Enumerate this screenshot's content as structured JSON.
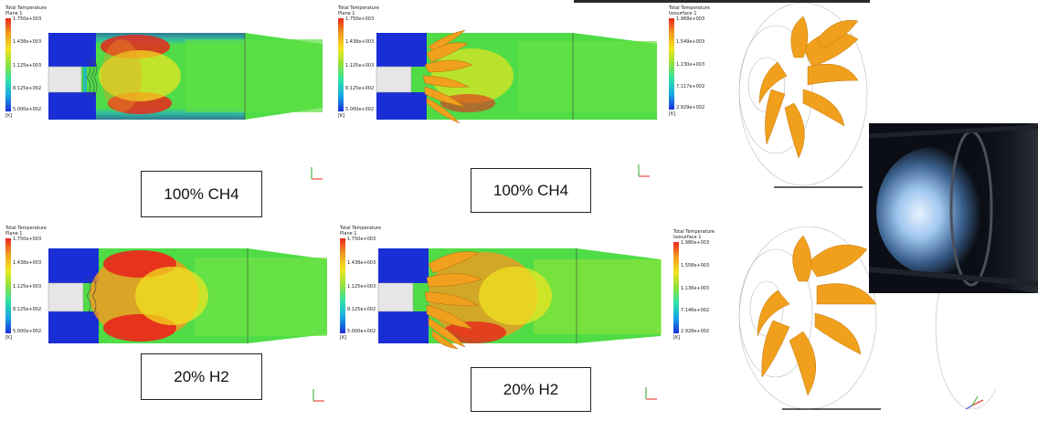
{
  "figures": [
    {
      "id": "top-left",
      "legend_title": "Total Temperature",
      "legend_sub": "Plane 1",
      "ticks": [
        "1.750e+003",
        "1.438e+003",
        "1.125e+003",
        "8.125e+002",
        "5.000e+002"
      ],
      "unit": "[K]"
    },
    {
      "id": "top-mid",
      "legend_title": "Total Temperature",
      "legend_sub": "Plane 1",
      "ticks": [
        "1.750e+003",
        "1.438e+003",
        "1.125e+003",
        "8.125e+002",
        "5.000e+002"
      ],
      "unit": "[K]"
    },
    {
      "id": "top-right",
      "legend_title": "Total Temperature",
      "legend_sub": "Isosurface 1",
      "ticks": [
        "1.968e+003",
        "1.549e+003",
        "1.130e+003",
        "7.117e+002",
        "2.929e+002"
      ],
      "unit": "[K]"
    },
    {
      "id": "bottom-left",
      "legend_title": "Total Temperature",
      "legend_sub": "Plane 1",
      "ticks": [
        "1.750e+003",
        "1.438e+003",
        "1.125e+003",
        "8.125e+002",
        "5.000e+002"
      ],
      "unit": "[K]"
    },
    {
      "id": "bottom-mid",
      "legend_title": "Total Temperature",
      "legend_sub": "Plane 1",
      "ticks": [
        "1.750e+003",
        "1.438e+003",
        "1.125e+003",
        "8.125e+002",
        "5.000e+002"
      ],
      "unit": "[K]"
    },
    {
      "id": "bottom-right",
      "legend_title": "Total Temperature",
      "legend_sub": "Isosurface 1",
      "ticks": [
        "1.980e+003",
        "1.558e+003",
        "1.136e+003",
        "7.146e+002",
        "2.928e+002"
      ],
      "unit": "[K]"
    }
  ],
  "labels": {
    "ch4_left": "100% CH4",
    "ch4_mid": "100% CH4",
    "h2_left": "20% H2",
    "h2_mid": "20% H2"
  },
  "colors": {
    "hot": "#e8271c",
    "warm": "#f2e51f",
    "mid": "#4fdc46",
    "cool": "#2fe3a5",
    "cold": "#1a2ed6",
    "iso": "#f0a01c"
  }
}
